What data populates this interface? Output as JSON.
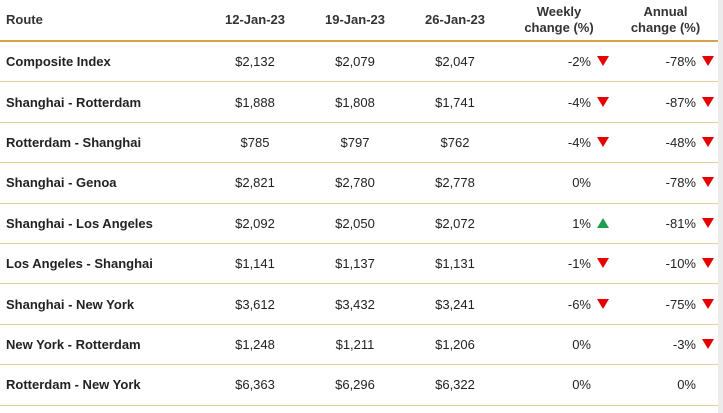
{
  "table": {
    "header": [
      "Route",
      "12-Jan-23",
      "19-Jan-23",
      "26-Jan-23",
      "Weekly change (%)",
      "Annual change (%)"
    ],
    "rows": [
      [
        "Composite Index",
        "$2,132",
        "$2,079",
        "$2,047",
        "-2%",
        "-78%"
      ],
      [
        "Shanghai - Rotterdam",
        "$1,888",
        "$1,808",
        "$1,741",
        "-4%",
        "-87%"
      ],
      [
        "Rotterdam - Shanghai",
        "$785",
        "$797",
        "$762",
        "-4%",
        "-48%"
      ],
      [
        "Shanghai - Genoa",
        "$2,821",
        "$2,780",
        "$2,778",
        "0%",
        "-78%"
      ],
      [
        "Shanghai - Los Angeles",
        "$2,092",
        "$2,050",
        "$2,072",
        "1%",
        "-81%"
      ],
      [
        "Los Angeles - Shanghai",
        "$1,141",
        "$1,137",
        "$1,131",
        "-1%",
        "-10%"
      ],
      [
        "Shanghai - New York",
        "$3,612",
        "$3,432",
        "$3,241",
        "-6%",
        "-75%"
      ],
      [
        "New York - Rotterdam",
        "$1,248",
        "$1,211",
        "$1,206",
        "0%",
        "-3%"
      ],
      [
        "Rotterdam - New York",
        "$6,363",
        "$6,296",
        "$6,322",
        "0%",
        "0%"
      ]
    ]
  }
}
